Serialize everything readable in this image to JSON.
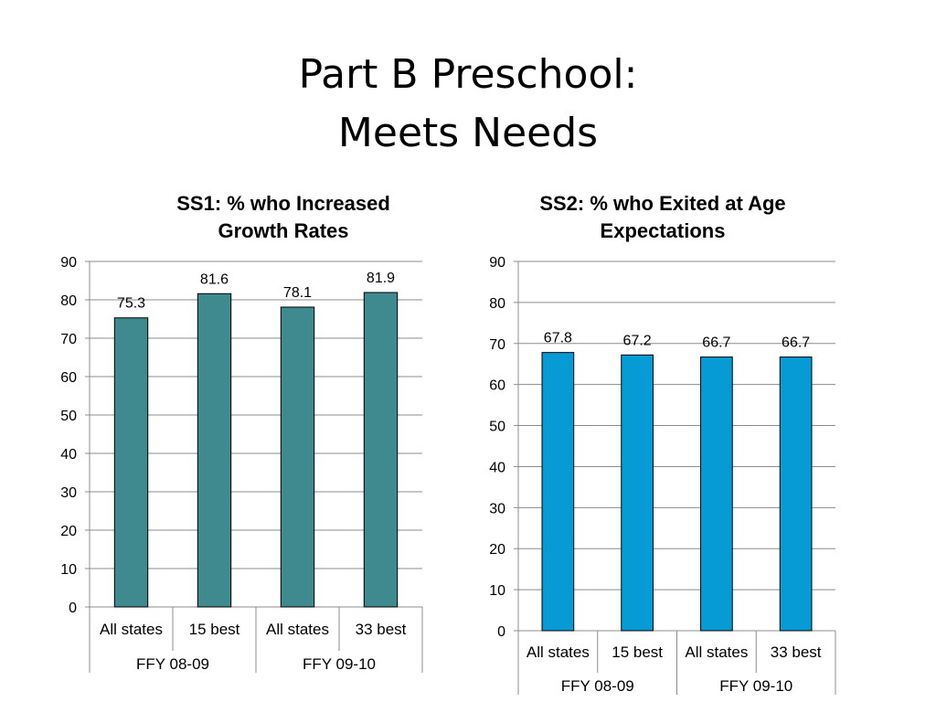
{
  "slide": {
    "title_line1": "Part B Preschool:",
    "title_line2": "Meets Needs"
  },
  "chart_data": [
    {
      "type": "bar",
      "title_lines": [
        "SS1: % who Increased",
        "Growth Rates"
      ],
      "categories": [
        "All states",
        "15 best",
        "All states",
        "33 best"
      ],
      "groups": [
        {
          "label": "FFY 08-09",
          "span": 2
        },
        {
          "label": "FFY 09-10",
          "span": 2
        }
      ],
      "values": [
        75.3,
        81.6,
        78.1,
        81.9
      ],
      "ylim": [
        0,
        90
      ],
      "yticks": [
        0,
        10,
        20,
        30,
        40,
        50,
        60,
        70,
        80,
        90
      ],
      "grid": true,
      "color": "#3e8a8e"
    },
    {
      "type": "bar",
      "title_lines": [
        "SS2: % who Exited at Age",
        "Expectations"
      ],
      "categories": [
        "All states",
        "15 best",
        "All states",
        "33 best"
      ],
      "groups": [
        {
          "label": "FFY 08-09",
          "span": 2
        },
        {
          "label": "FFY 09-10",
          "span": 2
        }
      ],
      "values": [
        67.8,
        67.2,
        66.7,
        66.7
      ],
      "ylim": [
        0,
        90
      ],
      "yticks": [
        0,
        10,
        20,
        30,
        40,
        50,
        60,
        70,
        80,
        90
      ],
      "grid": true,
      "color": "#079bd6"
    }
  ]
}
